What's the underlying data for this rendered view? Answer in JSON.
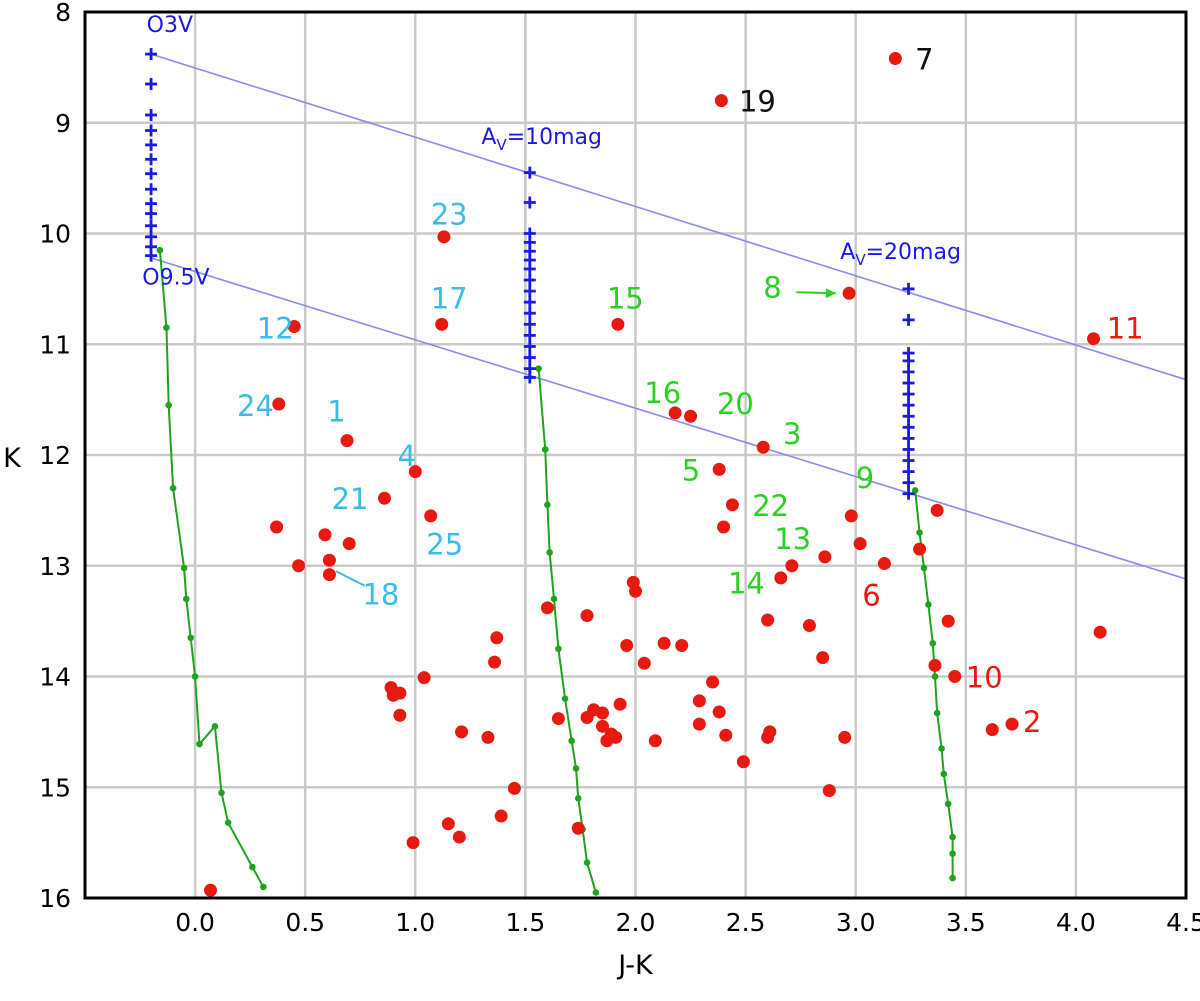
{
  "chart_data": {
    "type": "scatter",
    "title": "",
    "xlabel": "J-K",
    "ylabel": "K",
    "xlim": [
      -0.5,
      4.5
    ],
    "ylim": [
      8,
      16
    ],
    "y_inverted": true,
    "grid": true,
    "xticks": [
      0.0,
      0.5,
      1.0,
      1.5,
      2.0,
      2.5,
      3.0,
      3.5,
      4.0,
      4.5
    ],
    "xtick_labels": [
      "0.0",
      "0.5",
      "1.0",
      "1.5",
      "2.0",
      "2.5",
      "3.0",
      "3.5",
      "4.0",
      "4.5"
    ],
    "yticks": [
      8,
      9,
      10,
      11,
      12,
      13,
      14,
      15,
      16
    ],
    "ytick_labels": [
      "8",
      "9",
      "10",
      "11",
      "12",
      "13",
      "14",
      "15",
      "16"
    ],
    "colors": {
      "stars": "#e8190f",
      "tracks": "#1fa31f",
      "reddening_lines": "#8a8aee",
      "markers": "#1a1ae6",
      "label_black": "#111111",
      "label_red": "#e8190f",
      "label_green": "#2ad11f",
      "label_cyan": "#39bde6",
      "label_blue": "#1a1ae6"
    },
    "stars": [
      [
        3.18,
        8.42
      ],
      [
        2.39,
        8.8
      ],
      [
        1.13,
        10.03
      ],
      [
        0.45,
        10.84
      ],
      [
        1.12,
        10.82
      ],
      [
        1.92,
        10.82
      ],
      [
        2.97,
        10.54
      ],
      [
        4.08,
        10.95
      ],
      [
        0.38,
        11.54
      ],
      [
        0.69,
        11.87
      ],
      [
        2.18,
        11.62
      ],
      [
        2.25,
        11.65
      ],
      [
        2.58,
        11.93
      ],
      [
        1.0,
        12.15
      ],
      [
        2.38,
        12.13
      ],
      [
        0.86,
        12.39
      ],
      [
        2.44,
        12.45
      ],
      [
        1.07,
        12.55
      ],
      [
        2.4,
        12.65
      ],
      [
        0.37,
        12.65
      ],
      [
        0.59,
        12.72
      ],
      [
        0.7,
        12.8
      ],
      [
        0.61,
        12.95
      ],
      [
        0.47,
        13.0
      ],
      [
        0.61,
        13.08
      ],
      [
        2.98,
        12.55
      ],
      [
        3.02,
        12.8
      ],
      [
        3.13,
        12.98
      ],
      [
        2.86,
        12.92
      ],
      [
        2.71,
        13.0
      ],
      [
        2.66,
        13.11
      ],
      [
        3.37,
        12.5
      ],
      [
        3.29,
        12.85
      ],
      [
        1.6,
        13.38
      ],
      [
        1.78,
        13.45
      ],
      [
        1.37,
        13.65
      ],
      [
        1.36,
        13.87
      ],
      [
        1.99,
        13.15
      ],
      [
        2.0,
        13.23
      ],
      [
        1.96,
        13.72
      ],
      [
        2.04,
        13.88
      ],
      [
        2.13,
        13.7
      ],
      [
        2.21,
        13.72
      ],
      [
        2.6,
        13.49
      ],
      [
        2.79,
        13.54
      ],
      [
        2.85,
        13.83
      ],
      [
        3.36,
        13.9
      ],
      [
        3.42,
        13.5
      ],
      [
        3.45,
        14.0
      ],
      [
        4.11,
        13.6
      ],
      [
        3.62,
        14.48
      ],
      [
        3.71,
        14.43
      ],
      [
        0.89,
        14.1
      ],
      [
        0.9,
        14.17
      ],
      [
        0.93,
        14.15
      ],
      [
        0.93,
        14.35
      ],
      [
        1.04,
        14.01
      ],
      [
        1.21,
        14.5
      ],
      [
        1.33,
        14.55
      ],
      [
        1.65,
        14.38
      ],
      [
        1.78,
        14.37
      ],
      [
        1.81,
        14.3
      ],
      [
        1.85,
        14.33
      ],
      [
        1.85,
        14.45
      ],
      [
        1.87,
        14.58
      ],
      [
        1.89,
        14.52
      ],
      [
        1.91,
        14.55
      ],
      [
        1.93,
        14.25
      ],
      [
        2.09,
        14.58
      ],
      [
        2.29,
        14.22
      ],
      [
        2.29,
        14.43
      ],
      [
        2.35,
        14.05
      ],
      [
        2.38,
        14.32
      ],
      [
        2.41,
        14.53
      ],
      [
        2.49,
        14.77
      ],
      [
        2.6,
        14.55
      ],
      [
        2.61,
        14.5
      ],
      [
        2.95,
        14.55
      ],
      [
        2.88,
        15.03
      ],
      [
        1.45,
        15.01
      ],
      [
        1.39,
        15.26
      ],
      [
        1.15,
        15.33
      ],
      [
        1.2,
        15.45
      ],
      [
        0.99,
        15.5
      ],
      [
        1.74,
        15.37
      ],
      [
        0.07,
        15.93
      ]
    ],
    "main_sequence_tracks": [
      {
        "name": "unreddened",
        "points": [
          [
            -0.16,
            10.15
          ],
          [
            -0.13,
            10.85
          ],
          [
            -0.12,
            11.55
          ],
          [
            -0.1,
            12.3
          ],
          [
            -0.05,
            13.02
          ],
          [
            -0.04,
            13.3
          ],
          [
            -0.02,
            13.65
          ],
          [
            0.0,
            14.0
          ],
          [
            0.02,
            14.61
          ],
          [
            0.09,
            14.45
          ],
          [
            0.12,
            15.05
          ],
          [
            0.15,
            15.32
          ],
          [
            0.26,
            15.72
          ],
          [
            0.31,
            15.9
          ]
        ]
      },
      {
        "name": "Av=10mag",
        "points": [
          [
            1.56,
            11.22
          ],
          [
            1.59,
            11.95
          ],
          [
            1.6,
            12.45
          ],
          [
            1.61,
            12.88
          ],
          [
            1.63,
            13.3
          ],
          [
            1.65,
            13.75
          ],
          [
            1.68,
            14.2
          ],
          [
            1.71,
            14.58
          ],
          [
            1.73,
            14.83
          ],
          [
            1.74,
            15.1
          ],
          [
            1.76,
            15.38
          ],
          [
            1.78,
            15.68
          ],
          [
            1.82,
            15.95
          ]
        ]
      },
      {
        "name": "Av=20mag",
        "points": [
          [
            3.27,
            12.32
          ],
          [
            3.29,
            12.7
          ],
          [
            3.31,
            13.02
          ],
          [
            3.33,
            13.35
          ],
          [
            3.35,
            13.7
          ],
          [
            3.36,
            14.0
          ],
          [
            3.37,
            14.33
          ],
          [
            3.39,
            14.65
          ],
          [
            3.4,
            14.88
          ],
          [
            3.42,
            15.15
          ],
          [
            3.44,
            15.45
          ],
          [
            3.44,
            15.6
          ],
          [
            3.44,
            15.82
          ]
        ]
      }
    ],
    "reddening_lines": [
      {
        "from": [
          -0.2,
          8.38
        ],
        "to": [
          4.5,
          11.32
        ]
      },
      {
        "from": [
          -0.2,
          10.22
        ],
        "to": [
          4.5,
          13.12
        ]
      }
    ],
    "spectral_type_columns": [
      {
        "x": -0.2,
        "top": 8.38,
        "ks": [
          8.38,
          8.65,
          8.93,
          9.07,
          9.2,
          9.33,
          9.46,
          9.6,
          9.73,
          9.82,
          9.93,
          10.03,
          10.12,
          10.2
        ]
      },
      {
        "x": 1.52,
        "top": 9.45,
        "ks": [
          9.45,
          9.72,
          10.0,
          10.08,
          10.16,
          10.24,
          10.32,
          10.42,
          10.52,
          10.62,
          10.72,
          10.82,
          10.92,
          11.02,
          11.12,
          11.22,
          11.3
        ]
      },
      {
        "x": 3.24,
        "top": 10.5,
        "ks": [
          10.5,
          10.78,
          11.08,
          11.15,
          11.25,
          11.35,
          11.45,
          11.55,
          11.65,
          11.75,
          11.85,
          11.95,
          12.05,
          12.15,
          12.25,
          12.35
        ]
      }
    ],
    "spectral_labels": [
      {
        "text": "O3V",
        "x": -0.22,
        "y": 8.1
      },
      {
        "text": "O9.5V",
        "x": -0.24,
        "y": 10.38
      }
    ],
    "extinction_labels": [
      {
        "text": "A",
        "sub": "V",
        "rest": "=10mag",
        "x": 1.3,
        "y": 9.1
      },
      {
        "text": "A",
        "sub": "V",
        "rest": "=20mag",
        "x": 2.93,
        "y": 10.14
      }
    ],
    "annotations": [
      {
        "text": "7",
        "x": 3.27,
        "y": 8.42,
        "color": "label_black"
      },
      {
        "text": "19",
        "x": 2.47,
        "y": 8.8,
        "color": "label_black"
      },
      {
        "text": "23",
        "x": 1.07,
        "y": 9.82,
        "color": "label_cyan"
      },
      {
        "text": "17",
        "x": 1.07,
        "y": 10.58,
        "color": "label_cyan"
      },
      {
        "text": "15",
        "x": 1.87,
        "y": 10.58,
        "color": "label_green"
      },
      {
        "text": "8",
        "x": 2.58,
        "y": 10.48,
        "color": "label_green"
      },
      {
        "text": "11",
        "x": 4.14,
        "y": 10.85,
        "color": "label_red"
      },
      {
        "text": "12",
        "x": 0.28,
        "y": 10.85,
        "color": "label_cyan"
      },
      {
        "text": "24",
        "x": 0.19,
        "y": 11.55,
        "color": "label_cyan"
      },
      {
        "text": "1",
        "x": 0.6,
        "y": 11.6,
        "color": "label_cyan"
      },
      {
        "text": "16",
        "x": 2.04,
        "y": 11.43,
        "color": "label_green"
      },
      {
        "text": "20",
        "x": 2.37,
        "y": 11.53,
        "color": "label_green"
      },
      {
        "text": "3",
        "x": 2.67,
        "y": 11.8,
        "color": "label_green"
      },
      {
        "text": "4",
        "x": 0.92,
        "y": 12.0,
        "color": "label_cyan"
      },
      {
        "text": "5",
        "x": 2.21,
        "y": 12.13,
        "color": "label_green"
      },
      {
        "text": "21",
        "x": 0.62,
        "y": 12.39,
        "color": "label_cyan"
      },
      {
        "text": "22",
        "x": 2.53,
        "y": 12.45,
        "color": "label_green"
      },
      {
        "text": "9",
        "x": 3.0,
        "y": 12.2,
        "color": "label_green"
      },
      {
        "text": "25",
        "x": 1.05,
        "y": 12.8,
        "color": "label_cyan"
      },
      {
        "text": "13",
        "x": 2.63,
        "y": 12.75,
        "color": "label_green"
      },
      {
        "text": "18",
        "x": 0.76,
        "y": 13.25,
        "color": "label_cyan"
      },
      {
        "text": "14",
        "x": 2.42,
        "y": 13.15,
        "color": "label_green"
      },
      {
        "text": "6",
        "x": 3.03,
        "y": 13.26,
        "color": "label_red"
      },
      {
        "text": "10",
        "x": 3.5,
        "y": 14.0,
        "color": "label_red"
      },
      {
        "text": "2",
        "x": 3.76,
        "y": 14.4,
        "color": "label_red"
      }
    ],
    "arrows": [
      {
        "name": "star-8-arrow",
        "from": [
          2.73,
          10.53
        ],
        "to": [
          2.91,
          10.54
        ],
        "color": "label_green"
      },
      {
        "name": "star-18-leader",
        "from": [
          0.77,
          13.18
        ],
        "to": [
          0.64,
          13.05
        ],
        "color": "label_cyan"
      }
    ]
  }
}
